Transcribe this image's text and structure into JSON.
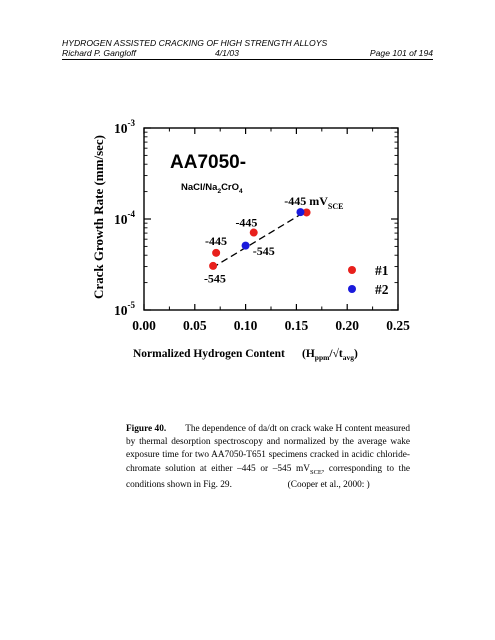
{
  "header": {
    "title": "HYDROGEN ASSISTED CRACKING OF HIGH STRENGTH ALLOYS",
    "author": "Richard P. Gangloff",
    "date": "4/1/03",
    "page": "Page 101 of 194"
  },
  "chart_data": {
    "type": "scatter",
    "title": "AA7050-",
    "subtitle_parts": [
      "NaCl/Na",
      "2",
      "CrO",
      "4"
    ],
    "ylabel": "Crack Growth Rate (mm/sec)",
    "xlabel_main": "Normalized Hydrogen Content",
    "xlabel_units": [
      "(H",
      "ppm",
      "/√t",
      "avg",
      ")"
    ],
    "x_ticks": [
      "0.00",
      "0.05",
      "0.10",
      "0.15",
      "0.20",
      "0.25"
    ],
    "y_ticks": [
      {
        "base": "10",
        "exp": "-3"
      },
      {
        "base": "10",
        "exp": "-4"
      },
      {
        "base": "10",
        "exp": "-5"
      }
    ],
    "xlim": [
      0,
      0.25
    ],
    "ylim": [
      1e-05,
      0.001
    ],
    "yscale": "log",
    "series": [
      {
        "name": "#1",
        "color": "#e8201c",
        "points": [
          [
            0.068,
            3.05e-05
          ],
          [
            0.071,
            4.25e-05
          ],
          [
            0.108,
            7.1e-05
          ],
          [
            0.16,
            0.000118
          ]
        ]
      },
      {
        "name": "#2",
        "color": "#1a1adc",
        "points": [
          [
            0.1,
            5.1e-05
          ],
          [
            0.154,
            0.000119
          ]
        ]
      }
    ],
    "trend_line": [
      [
        0.067,
        2.9e-05
      ],
      [
        0.159,
        0.000121
      ]
    ],
    "annotations": [
      {
        "text": "-445",
        "x": 0.06,
        "y": 5.2e-05
      },
      {
        "text": "-545",
        "x": 0.059,
        "y": 2e-05
      },
      {
        "text": "-445",
        "x": 0.09,
        "y": 8.3e-05
      },
      {
        "text": "-545",
        "x": 0.107,
        "y": 4e-05
      },
      {
        "text": "-445 mV",
        "sub": "SCE",
        "x": 0.138,
        "y": 0.000143
      }
    ],
    "legend_position": "bottom-right",
    "grid": false
  },
  "caption": {
    "label": "Figure 40.",
    "text": "The dependence of da/dt on crack wake H content measured by thermal desorption spectroscopy and normalized by the average wake exposure time for two AA7050-T651 specimens cracked in acidic chloride-chromate solution at either –445 or –545 mV",
    "sub": "SCE",
    "text2": ", corresponding to the conditions shown in Fig. 29.",
    "citation": "(Cooper et al., 2000: )"
  }
}
